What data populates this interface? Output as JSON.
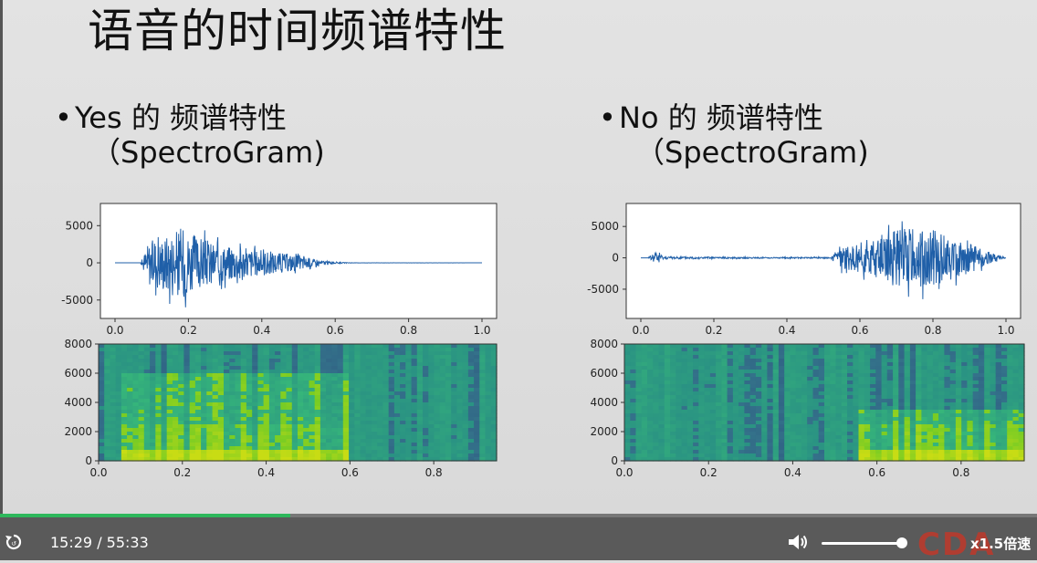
{
  "slide": {
    "title": "语音的时间频谱特性",
    "left": {
      "bullet": "•",
      "line1": "Yes 的 频谱特性",
      "line2": "（SpectroGram)"
    },
    "right": {
      "bullet": "•",
      "line1": "No 的 频谱特性",
      "line2": "（SpectroGram)"
    }
  },
  "chart_data": [
    {
      "type": "line",
      "name": "yes-waveform",
      "xlim": [
        0.0,
        1.0
      ],
      "ylim": [
        -6500,
        7000
      ],
      "xticks": [
        "0.0",
        "0.2",
        "0.4",
        "0.6",
        "0.8",
        "1.0"
      ],
      "yticks": [
        "5000",
        "0",
        "-5000"
      ],
      "envelope": {
        "x": [
          0.0,
          0.07,
          0.09,
          0.12,
          0.15,
          0.18,
          0.2,
          0.25,
          0.3,
          0.35,
          0.4,
          0.45,
          0.5,
          0.55,
          0.6,
          0.65,
          1.0
        ],
        "y": [
          0,
          0,
          4000,
          5000,
          6000,
          7000,
          6000,
          4500,
          3500,
          3000,
          2500,
          2000,
          1500,
          600,
          150,
          20,
          0
        ]
      }
    },
    {
      "type": "heatmap",
      "name": "yes-spectrogram",
      "xlim": [
        0.0,
        0.95
      ],
      "ylim": [
        0,
        8000
      ],
      "xticks": [
        "0.0",
        "0.2",
        "0.4",
        "0.6",
        "0.8"
      ],
      "yticks": [
        "8000",
        "6000",
        "4000",
        "2000",
        "0"
      ],
      "high_energy_region": {
        "time": [
          0.05,
          0.6
        ],
        "freq": [
          0,
          6000
        ]
      }
    },
    {
      "type": "line",
      "name": "no-waveform",
      "xlim": [
        0.0,
        1.0
      ],
      "ylim": [
        -8500,
        7500
      ],
      "xticks": [
        "0.0",
        "0.2",
        "0.4",
        "0.6",
        "0.8",
        "1.0"
      ],
      "yticks": [
        "5000",
        "0",
        "-5000"
      ],
      "envelope": {
        "x": [
          0.0,
          0.02,
          0.04,
          0.05,
          0.06,
          0.3,
          0.52,
          0.55,
          0.6,
          0.65,
          0.7,
          0.75,
          0.8,
          0.85,
          0.9,
          0.95,
          1.0
        ],
        "y": [
          0,
          0,
          1500,
          1600,
          300,
          150,
          150,
          2500,
          3500,
          5000,
          6500,
          7000,
          6500,
          5000,
          3500,
          1500,
          0
        ]
      }
    },
    {
      "type": "heatmap",
      "name": "no-spectrogram",
      "xlim": [
        0.0,
        0.95
      ],
      "ylim": [
        0,
        8000
      ],
      "xticks": [
        "0.0",
        "0.2",
        "0.4",
        "0.6",
        "0.8"
      ],
      "yticks": [
        "8000",
        "6000",
        "4000",
        "2000",
        "0"
      ],
      "high_energy_region": {
        "time": [
          0.55,
          0.95
        ],
        "freq": [
          0,
          3500
        ]
      }
    }
  ],
  "player": {
    "time": "15:29 / 55:33",
    "speed": "x1.5倍速",
    "progress": 0.28,
    "volume": 0.9,
    "logo": "CDA",
    "icons": {
      "replay": "replay-icon",
      "volume": "volume-icon"
    }
  }
}
